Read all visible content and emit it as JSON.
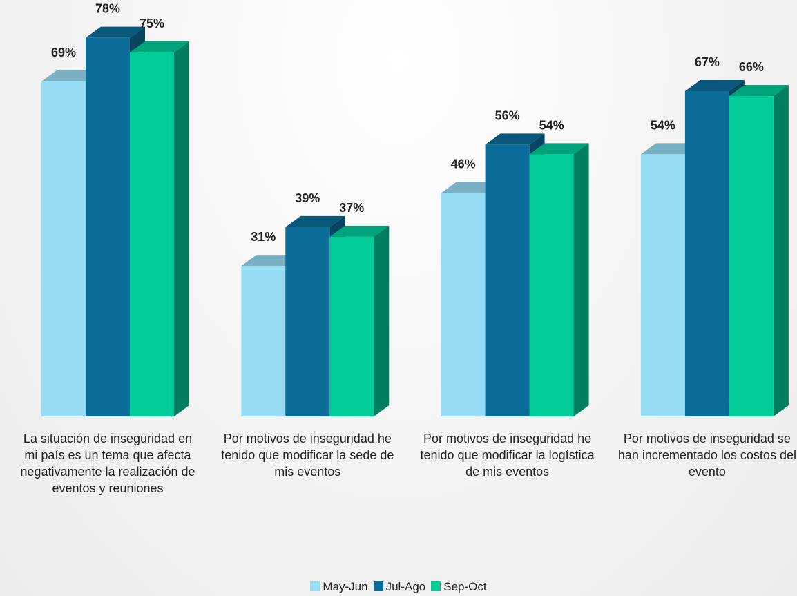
{
  "chart_data": {
    "type": "bar3d",
    "categories": [
      "La situación de inseguridad en mi país es un tema que afecta negativamente la realización de eventos y reuniones",
      "Por motivos de inseguridad he tenido que modificar la sede de mis eventos",
      "Por motivos de inseguridad he tenido que modificar la logística de mis eventos",
      "Por motivos de inseguridad se han incrementado los costos del evento"
    ],
    "series": [
      {
        "name": "May-Jun",
        "color": "#97dcf5",
        "values": [
          69,
          31,
          46,
          54
        ],
        "value_labels": [
          "69%",
          "31%",
          "46%",
          "54%"
        ]
      },
      {
        "name": "Jul-Ago",
        "color": "#0b6e9a",
        "values": [
          78,
          39,
          56,
          67
        ],
        "value_labels": [
          "78%",
          "39%",
          "56%",
          "67%"
        ]
      },
      {
        "name": "Sep-Oct",
        "color": "#00cc99",
        "values": [
          75,
          37,
          54,
          66
        ],
        "value_labels": [
          "75%",
          "37%",
          "54%",
          "66%"
        ]
      }
    ],
    "legend": "bottom"
  }
}
